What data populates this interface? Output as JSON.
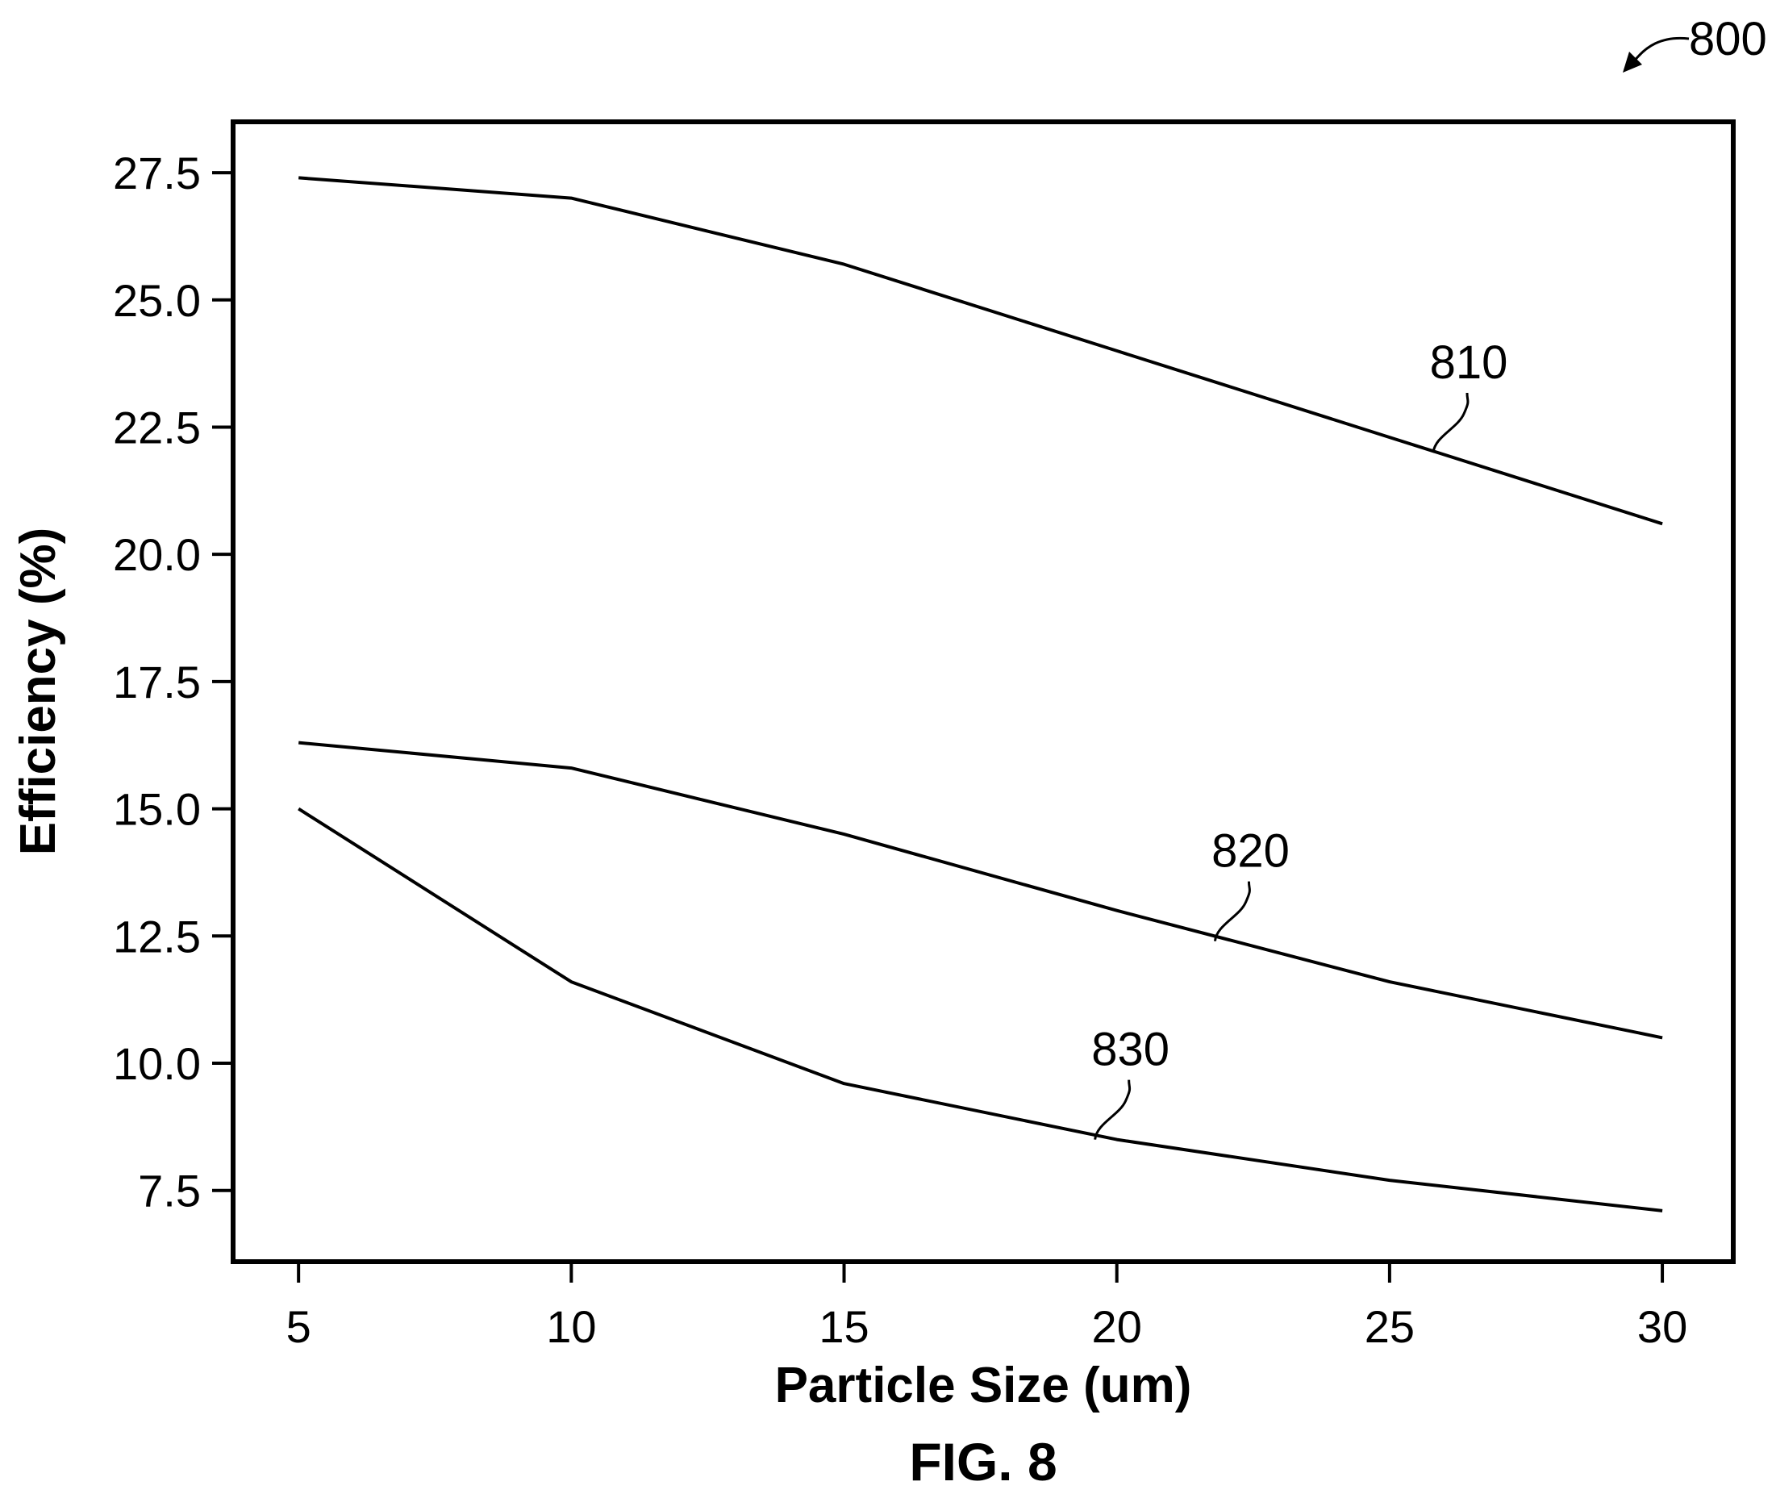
{
  "figure": {
    "ref_number": "800",
    "caption": "FIG. 8"
  },
  "chart_data": {
    "type": "line",
    "title": "",
    "xlabel": "Particle Size (um)",
    "ylabel": "Efficiency (%)",
    "xlim": [
      3.8,
      31.3
    ],
    "ylim": [
      6.1,
      28.5
    ],
    "x_ticks": [
      5,
      10,
      15,
      20,
      25,
      30
    ],
    "x_tick_labels": [
      "5",
      "10",
      "15",
      "20",
      "25",
      "30"
    ],
    "y_ticks": [
      7.5,
      10.0,
      12.5,
      15.0,
      17.5,
      20.0,
      22.5,
      25.0,
      27.5
    ],
    "y_tick_labels": [
      "7.5",
      "10.0",
      "12.5",
      "15.0",
      "17.5",
      "20.0",
      "22.5",
      "25.0",
      "27.5"
    ],
    "grid": false,
    "legend": "none",
    "x": [
      5,
      10,
      15,
      20,
      25,
      30
    ],
    "series": [
      {
        "label": "810",
        "values": [
          27.4,
          27.0,
          25.7,
          24.0,
          22.3,
          20.6
        ],
        "label_at": [
          25.8,
          22.0
        ]
      },
      {
        "label": "820",
        "values": [
          16.3,
          15.8,
          14.5,
          13.0,
          11.6,
          10.5
        ],
        "label_at": [
          21.8,
          12.4
        ]
      },
      {
        "label": "830",
        "values": [
          15.0,
          11.6,
          9.6,
          8.5,
          7.7,
          7.1
        ],
        "label_at": [
          19.6,
          8.5
        ]
      }
    ]
  }
}
